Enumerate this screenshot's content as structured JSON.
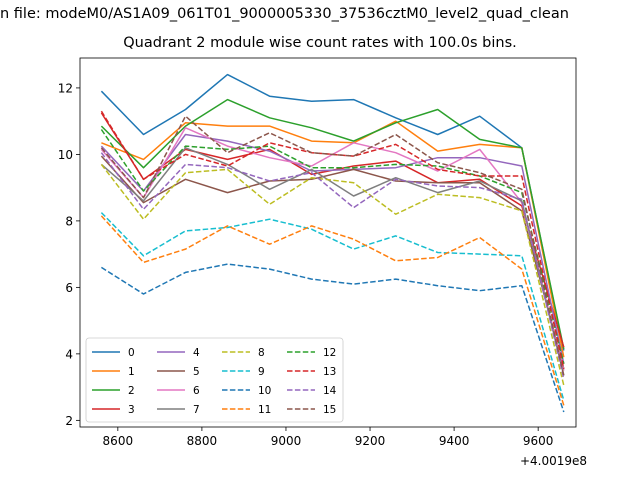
{
  "chart_data": {
    "type": "line",
    "suptitle": "n file: modeM0/AS1A09_061T01_9000005330_37536cztM0_level2_quad_clean",
    "title": "Quadrant 2 module wise count rates with 100.0s bins.",
    "xlabel": "",
    "ylabel": "",
    "x_offset_label": "+4.0019e8",
    "xlim": [
      8510,
      9690
    ],
    "ylim": [
      1.8,
      12.9
    ],
    "x_ticks": [
      8600,
      8800,
      9000,
      9200,
      9400,
      9600
    ],
    "x_tick_labels": [
      "8600",
      "8800",
      "9000",
      "9200",
      "9400",
      "9600"
    ],
    "y_ticks": [
      2,
      4,
      6,
      8,
      10,
      12
    ],
    "y_tick_labels": [
      "2",
      "4",
      "6",
      "8",
      "10",
      "12"
    ],
    "grid": false,
    "legend": {
      "position": "lower-left",
      "columns": 4
    },
    "x": [
      8561,
      8661,
      8761,
      8861,
      8961,
      9061,
      9161,
      9261,
      9361,
      9461,
      9561,
      9661
    ],
    "series": [
      {
        "name": "0",
        "color": "#1f77b4",
        "dash": "solid",
        "values": [
          11.9,
          10.6,
          11.35,
          12.4,
          11.75,
          11.6,
          11.65,
          11.1,
          10.6,
          11.15,
          10.2,
          4.1
        ]
      },
      {
        "name": "1",
        "color": "#ff7f0e",
        "dash": "solid",
        "values": [
          10.35,
          9.85,
          10.95,
          10.85,
          10.85,
          10.4,
          10.35,
          11.0,
          10.1,
          10.3,
          10.2,
          3.9
        ]
      },
      {
        "name": "2",
        "color": "#2ca02c",
        "dash": "solid",
        "values": [
          10.85,
          9.6,
          10.85,
          11.65,
          11.1,
          10.8,
          10.4,
          10.95,
          11.35,
          10.45,
          10.2,
          4.15
        ]
      },
      {
        "name": "3",
        "color": "#d62728",
        "dash": "solid",
        "values": [
          11.25,
          9.25,
          10.15,
          9.85,
          10.15,
          9.4,
          9.65,
          9.8,
          9.15,
          9.25,
          8.45,
          4.2
        ]
      },
      {
        "name": "4",
        "color": "#9467bd",
        "dash": "solid",
        "values": [
          10.25,
          8.9,
          10.6,
          10.4,
          10.1,
          9.5,
          9.55,
          9.6,
          9.9,
          9.9,
          9.65,
          3.7
        ]
      },
      {
        "name": "5",
        "color": "#8c564b",
        "dash": "solid",
        "values": [
          9.95,
          8.55,
          9.25,
          8.85,
          9.2,
          9.25,
          9.55,
          9.2,
          9.15,
          9.15,
          8.3,
          3.55
        ]
      },
      {
        "name": "6",
        "color": "#e377c2",
        "dash": "solid",
        "values": [
          10.15,
          8.7,
          10.8,
          10.25,
          9.9,
          9.65,
          10.35,
          10.05,
          9.5,
          10.15,
          8.55,
          3.5
        ]
      },
      {
        "name": "7",
        "color": "#7f7f7f",
        "dash": "solid",
        "values": [
          9.7,
          8.6,
          10.2,
          9.7,
          8.95,
          9.55,
          8.75,
          9.3,
          8.85,
          9.2,
          8.6,
          3.35
        ]
      },
      {
        "name": "8",
        "color": "#bcbd22",
        "dash": "dashed",
        "values": [
          9.7,
          8.05,
          9.45,
          9.55,
          8.5,
          9.3,
          9.15,
          8.2,
          8.8,
          8.7,
          8.3,
          3.05
        ]
      },
      {
        "name": "9",
        "color": "#17becf",
        "dash": "dashed",
        "values": [
          8.25,
          6.95,
          7.7,
          7.8,
          8.05,
          7.75,
          7.15,
          7.55,
          7.05,
          7.0,
          6.95,
          2.6
        ]
      },
      {
        "name": "10",
        "color": "#1f77b4",
        "dash": "dashed",
        "values": [
          6.6,
          5.8,
          6.45,
          6.7,
          6.55,
          6.25,
          6.1,
          6.25,
          6.05,
          5.9,
          6.05,
          2.25
        ]
      },
      {
        "name": "11",
        "color": "#ff7f0e",
        "dash": "dashed",
        "values": [
          8.15,
          6.75,
          7.15,
          7.85,
          7.3,
          7.85,
          7.45,
          6.8,
          6.9,
          7.5,
          6.55,
          2.45
        ]
      },
      {
        "name": "12",
        "color": "#2ca02c",
        "dash": "dashed",
        "values": [
          10.75,
          8.9,
          10.25,
          10.15,
          10.25,
          9.6,
          9.6,
          9.7,
          9.65,
          9.35,
          8.85,
          3.7
        ]
      },
      {
        "name": "13",
        "color": "#d62728",
        "dash": "dashed",
        "values": [
          11.3,
          9.25,
          10.0,
          9.65,
          10.35,
          10.05,
          9.95,
          10.3,
          9.55,
          9.35,
          9.35,
          3.55
        ]
      },
      {
        "name": "14",
        "color": "#9467bd",
        "dash": "dashed",
        "values": [
          10.05,
          8.35,
          9.7,
          9.6,
          9.2,
          9.45,
          8.4,
          9.25,
          9.05,
          9.0,
          8.65,
          3.25
        ]
      },
      {
        "name": "15",
        "color": "#8c564b",
        "dash": "dashed",
        "values": [
          10.2,
          8.7,
          11.15,
          10.05,
          10.65,
          10.05,
          9.95,
          10.6,
          9.75,
          9.45,
          8.95,
          3.35
        ]
      }
    ]
  }
}
